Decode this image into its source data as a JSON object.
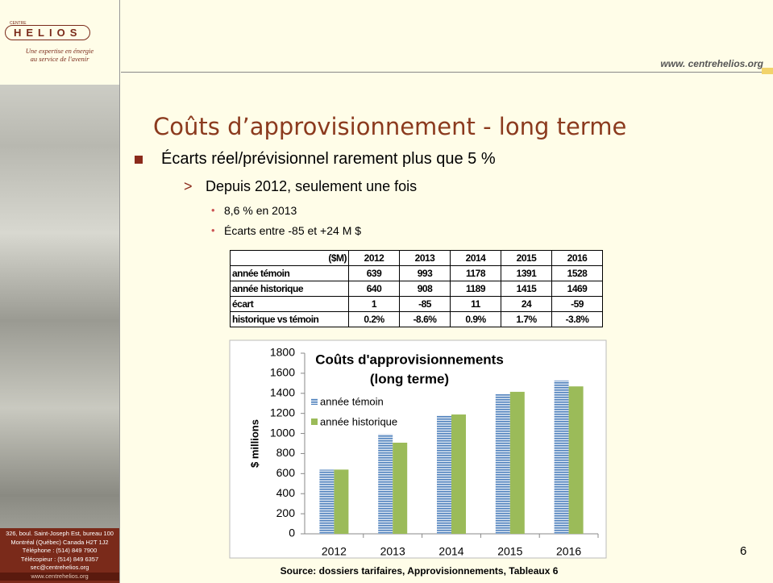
{
  "sidebar": {
    "logo_small": "CENTRE",
    "logo": "HELIOS",
    "tagline": [
      "Une expertise en énergie",
      "au service de l'avenir"
    ],
    "address": [
      "326, boul. Saint-Joseph Est, bureau 100",
      "Montréal (Québec) Canada H2T 1J2",
      "Téléphone : (514) 849 7900",
      "Télécopieur : (514) 849 6357",
      "sec@centrehelios.org"
    ],
    "website": "www.centrehelios.org"
  },
  "header": {
    "url": "www. centrehelios.org",
    "title": "Coûts d’approvisionnement - long terme"
  },
  "bullets": {
    "level1": "Écarts réel/prévisionnel rarement plus que 5 %",
    "level2": "Depuis 2012, seulement une fois",
    "level3": [
      "8,6 % en 2013",
      "Écarts entre -85 et +24 M $"
    ]
  },
  "table": {
    "header": [
      "($M)",
      "2012",
      "2013",
      "2014",
      "2015",
      "2016"
    ],
    "rows": [
      [
        "année témoin",
        "639",
        "993",
        "1178",
        "1391",
        "1528"
      ],
      [
        "année historique",
        "640",
        "908",
        "1189",
        "1415",
        "1469"
      ],
      [
        "écart",
        "1",
        "-85",
        "11",
        "24",
        "-59"
      ],
      [
        "historique vs témoin",
        "0.2%",
        "-8.6%",
        "0.9%",
        "1.7%",
        "-3.8%"
      ]
    ]
  },
  "chart_data": {
    "type": "bar",
    "title_lines": [
      "Coûts d'approvisionnements",
      "(long terme)"
    ],
    "y_label": "$ millions",
    "categories": [
      "2012",
      "2013",
      "2014",
      "2015",
      "2016"
    ],
    "series": [
      {
        "name": "année témoin",
        "color": "#4f81bd",
        "values": [
          639,
          993,
          1178,
          1391,
          1528
        ]
      },
      {
        "name": "année historique",
        "color": "#9bbb59",
        "values": [
          640,
          908,
          1189,
          1415,
          1469
        ]
      }
    ],
    "ylim": [
      0,
      1800
    ],
    "yticks": [
      0,
      200,
      400,
      600,
      800,
      1000,
      1200,
      1400,
      1600,
      1800
    ],
    "grid": false,
    "legend": "upper-left"
  },
  "source": "Source: dossiers tarifaires, Approvisionnements, Tableaux 6",
  "page_number": "6"
}
